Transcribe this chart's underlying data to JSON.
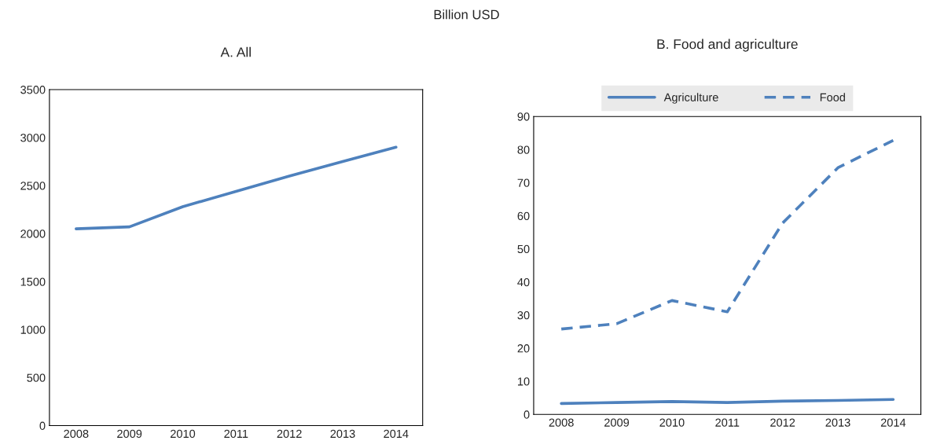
{
  "chart_data": [
    {
      "type": "line",
      "title": "A. All",
      "annotations": [
        "Billion USD"
      ],
      "categories": [
        "2008",
        "2009",
        "2010",
        "2011",
        "2012",
        "2013",
        "2014"
      ],
      "series": [
        {
          "color": "#4e81bd",
          "values": [
            2050,
            2070,
            2280,
            2440,
            2600,
            2750,
            2900
          ],
          "line_style": "solid"
        }
      ],
      "ylim": [
        0,
        3500
      ],
      "yticks": [
        0,
        500,
        1000,
        1500,
        2000,
        2500,
        3000,
        3500
      ],
      "grid": false,
      "legend": false
    },
    {
      "type": "line",
      "title": "B. Food and agriculture",
      "categories": [
        "2008",
        "2009",
        "2010",
        "2011",
        "2012",
        "2013",
        "2014"
      ],
      "series": [
        {
          "name": "Agriculture",
          "color": "#4e81bd",
          "line_style": "solid",
          "values": [
            3.3,
            3.6,
            3.9,
            3.6,
            4.0,
            4.2,
            4.5
          ]
        },
        {
          "name": "Food",
          "color": "#4e81bd",
          "line_style": "dashed",
          "values": [
            25.8,
            27.4,
            34.4,
            31.0,
            57.8,
            74.5,
            82.8
          ]
        }
      ],
      "ylim": [
        0,
        90
      ],
      "yticks": [
        0,
        10,
        20,
        30,
        40,
        50,
        60,
        70,
        80,
        90
      ],
      "grid": false,
      "legend": "top"
    }
  ]
}
